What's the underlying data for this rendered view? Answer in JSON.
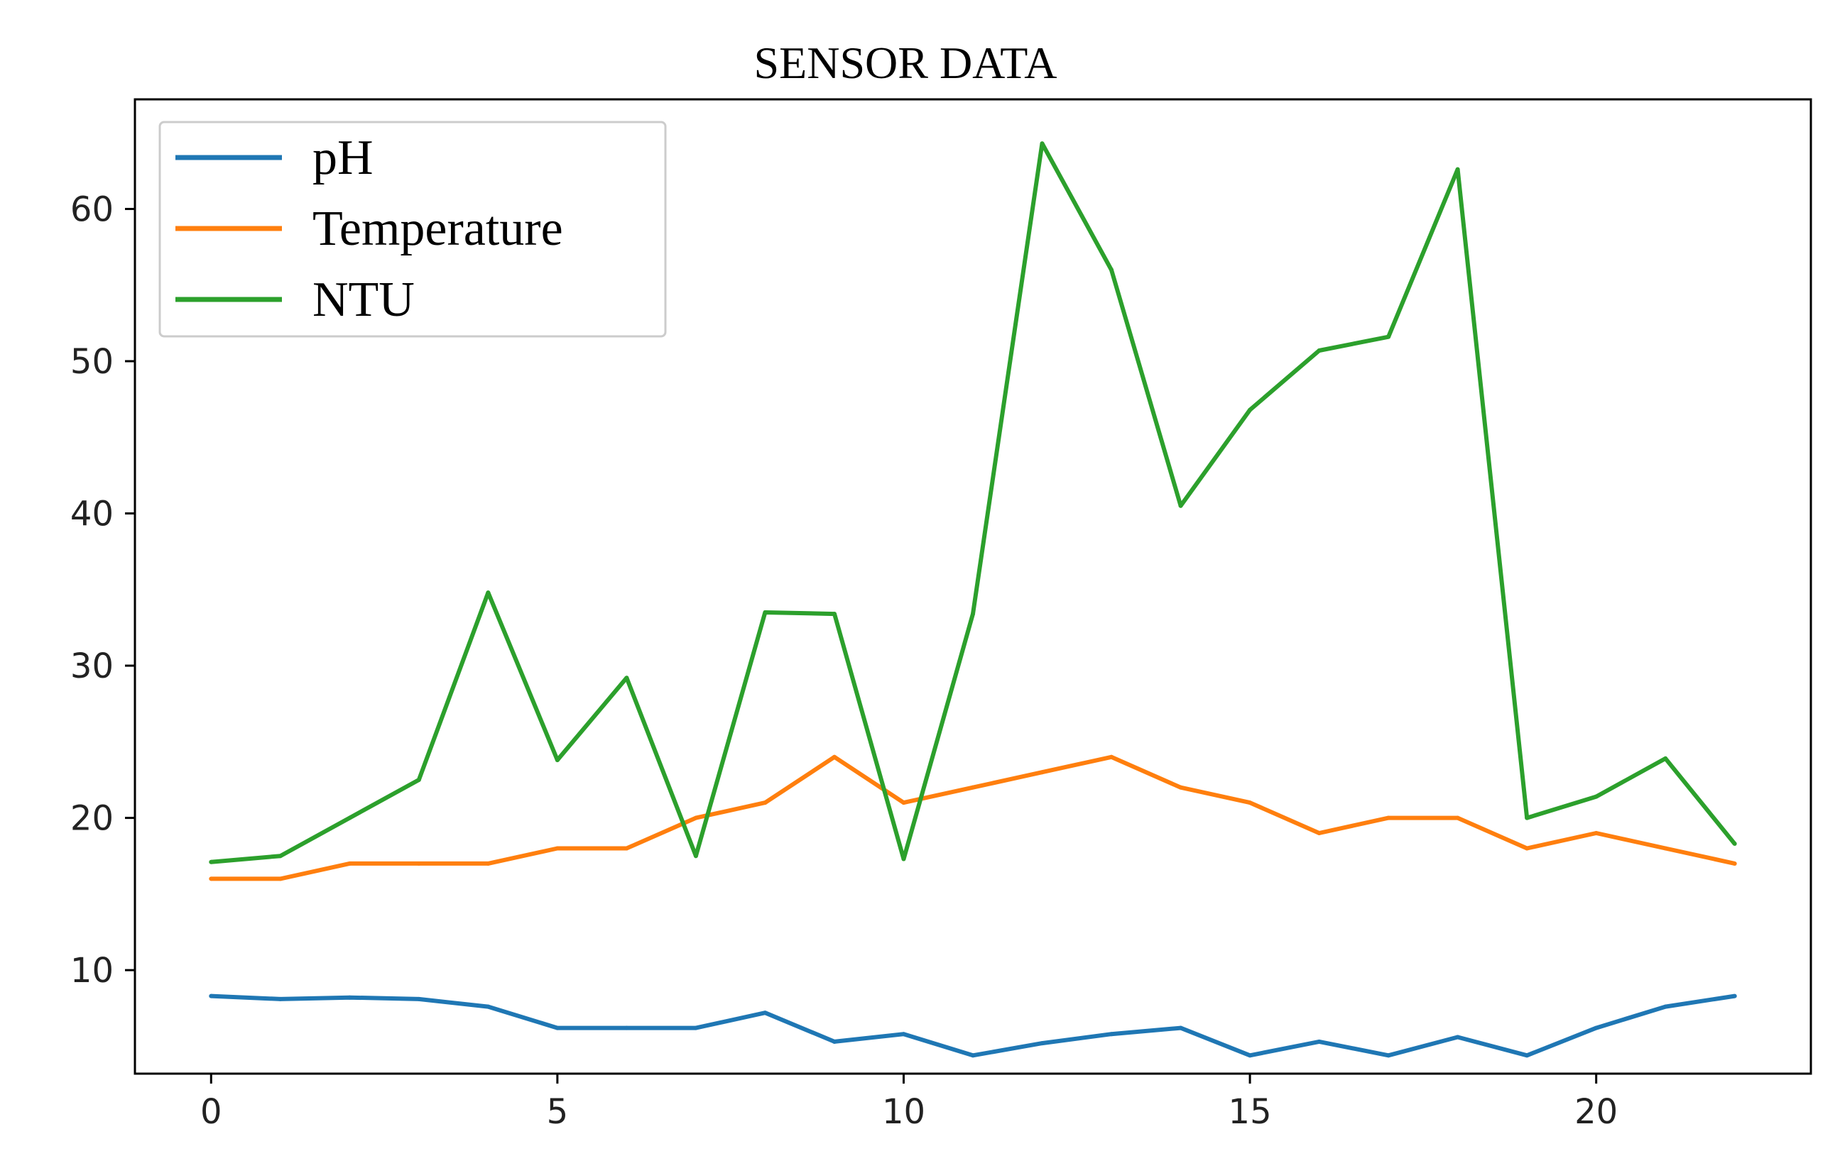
{
  "chart_data": {
    "type": "line",
    "title": "SENSOR DATA",
    "xlabel": "",
    "ylabel": "",
    "xlim": [
      -1.1,
      23.1
    ],
    "ylim": [
      3.2,
      67.2
    ],
    "x_ticks": [
      0,
      5,
      10,
      15,
      20
    ],
    "y_ticks": [
      10,
      20,
      30,
      40,
      50,
      60
    ],
    "grid": false,
    "legend_position": "top-left",
    "x": [
      0,
      1,
      2,
      3,
      4,
      5,
      6,
      7,
      8,
      9,
      10,
      11,
      12,
      13,
      14,
      15,
      16,
      17,
      18,
      19,
      20,
      21,
      22
    ],
    "series": [
      {
        "name": "pH",
        "color": "#1f77b4",
        "values": [
          8.3,
          8.1,
          8.2,
          8.1,
          7.6,
          6.2,
          6.2,
          6.2,
          7.2,
          5.3,
          5.8,
          4.4,
          5.2,
          5.8,
          6.2,
          4.4,
          5.3,
          4.4,
          5.6,
          4.4,
          6.2,
          7.6,
          8.3
        ]
      },
      {
        "name": "Temperature",
        "color": "#ff7f0e",
        "values": [
          16,
          16,
          17,
          17,
          17,
          18,
          18,
          20,
          21,
          24,
          21,
          22,
          23,
          24,
          22,
          21,
          19,
          20,
          20,
          18,
          19,
          18,
          17
        ]
      },
      {
        "name": "NTU",
        "color": "#2ca02c",
        "values": [
          17.1,
          17.5,
          20.0,
          22.5,
          34.8,
          23.8,
          29.2,
          17.5,
          33.5,
          33.4,
          17.3,
          33.4,
          64.3,
          56.0,
          40.5,
          46.8,
          50.7,
          51.6,
          62.6,
          20.0,
          21.4,
          23.9,
          18.3
        ]
      }
    ]
  }
}
